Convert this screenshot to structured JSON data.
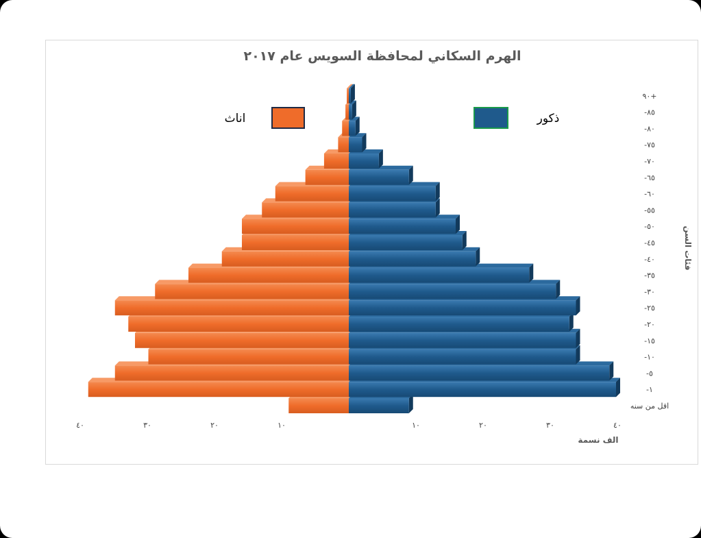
{
  "chart_data": {
    "type": "bar",
    "orientation": "horizontal-pyramid",
    "title": "الهرم السكاني لمحافظة السويس عام ٢٠١٧",
    "xlabel": "الف نسمة",
    "ylabel": "فئات السن",
    "categories": [
      "اقل من سنه",
      "١-",
      "٥-",
      "١٠-",
      "١٥-",
      "٢٠-",
      "٢٥-",
      "٣٠-",
      "٣٥-",
      "٤٠-",
      "٤٥-",
      "٥٠-",
      "٥٥-",
      "٦٠-",
      "٦٥-",
      "٧٠-",
      "٧٥-",
      "٨٠-",
      "٨٥-",
      "+٩٠"
    ],
    "series": [
      {
        "name": "ذكور",
        "color": "#1f5a8c",
        "values": [
          9,
          40,
          39,
          34,
          34,
          33,
          34,
          31,
          27,
          19,
          17,
          16,
          13,
          13,
          9,
          4.5,
          2,
          1,
          0.5,
          0.3
        ]
      },
      {
        "name": "اناث",
        "color": "#ef6c2a",
        "values": [
          9,
          39,
          35,
          30,
          32,
          33,
          35,
          29,
          24,
          19,
          16,
          16,
          13,
          11,
          6.5,
          3.7,
          1.6,
          1,
          0.5,
          0.3
        ]
      }
    ],
    "xticks": [
      "٤٠",
      "٣٠",
      "٢٠",
      "١٠",
      "",
      "١٠",
      "٢٠",
      "٣٠",
      "٤٠"
    ],
    "xlim": [
      -40,
      40
    ],
    "grid": false,
    "legend": "top"
  }
}
